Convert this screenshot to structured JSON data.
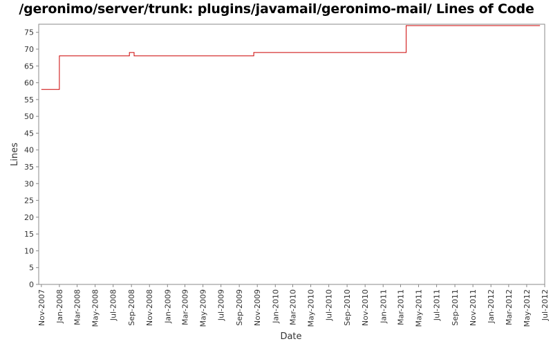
{
  "chart_data": {
    "type": "line",
    "title": "/geronimo/server/trunk: plugins/javamail/geronimo-mail/ Lines of Code",
    "xlabel": "Date",
    "ylabel": "Lines",
    "ylim": [
      0,
      77
    ],
    "yticks": [
      0,
      5,
      10,
      15,
      20,
      25,
      30,
      35,
      40,
      45,
      50,
      55,
      60,
      65,
      70,
      75
    ],
    "xlim": [
      "2007-10-23",
      "2012-07-01"
    ],
    "xticks": [
      "Nov-2007",
      "Jan-2008",
      "Mar-2008",
      "May-2008",
      "Jul-2008",
      "Sep-2008",
      "Nov-2008",
      "Jan-2009",
      "Mar-2009",
      "May-2009",
      "Jul-2009",
      "Sep-2009",
      "Nov-2009",
      "Jan-2010",
      "Mar-2010",
      "May-2010",
      "Jul-2010",
      "Sep-2010",
      "Nov-2010",
      "Jan-2011",
      "Mar-2011",
      "May-2011",
      "Jul-2011",
      "Sep-2011",
      "Nov-2011",
      "Jan-2012",
      "Mar-2012",
      "May-2012",
      "Jul-2012"
    ],
    "grid": false,
    "step": true,
    "series": [
      {
        "name": "",
        "color": "#cc0000",
        "x": [
          "2007-11-01",
          "2008-01-01",
          "2008-08-25",
          "2008-09-10",
          "2009-10-20",
          "2011-03-20",
          "2012-06-15"
        ],
        "values": [
          58,
          68,
          69,
          68,
          69,
          77,
          77
        ]
      }
    ]
  }
}
